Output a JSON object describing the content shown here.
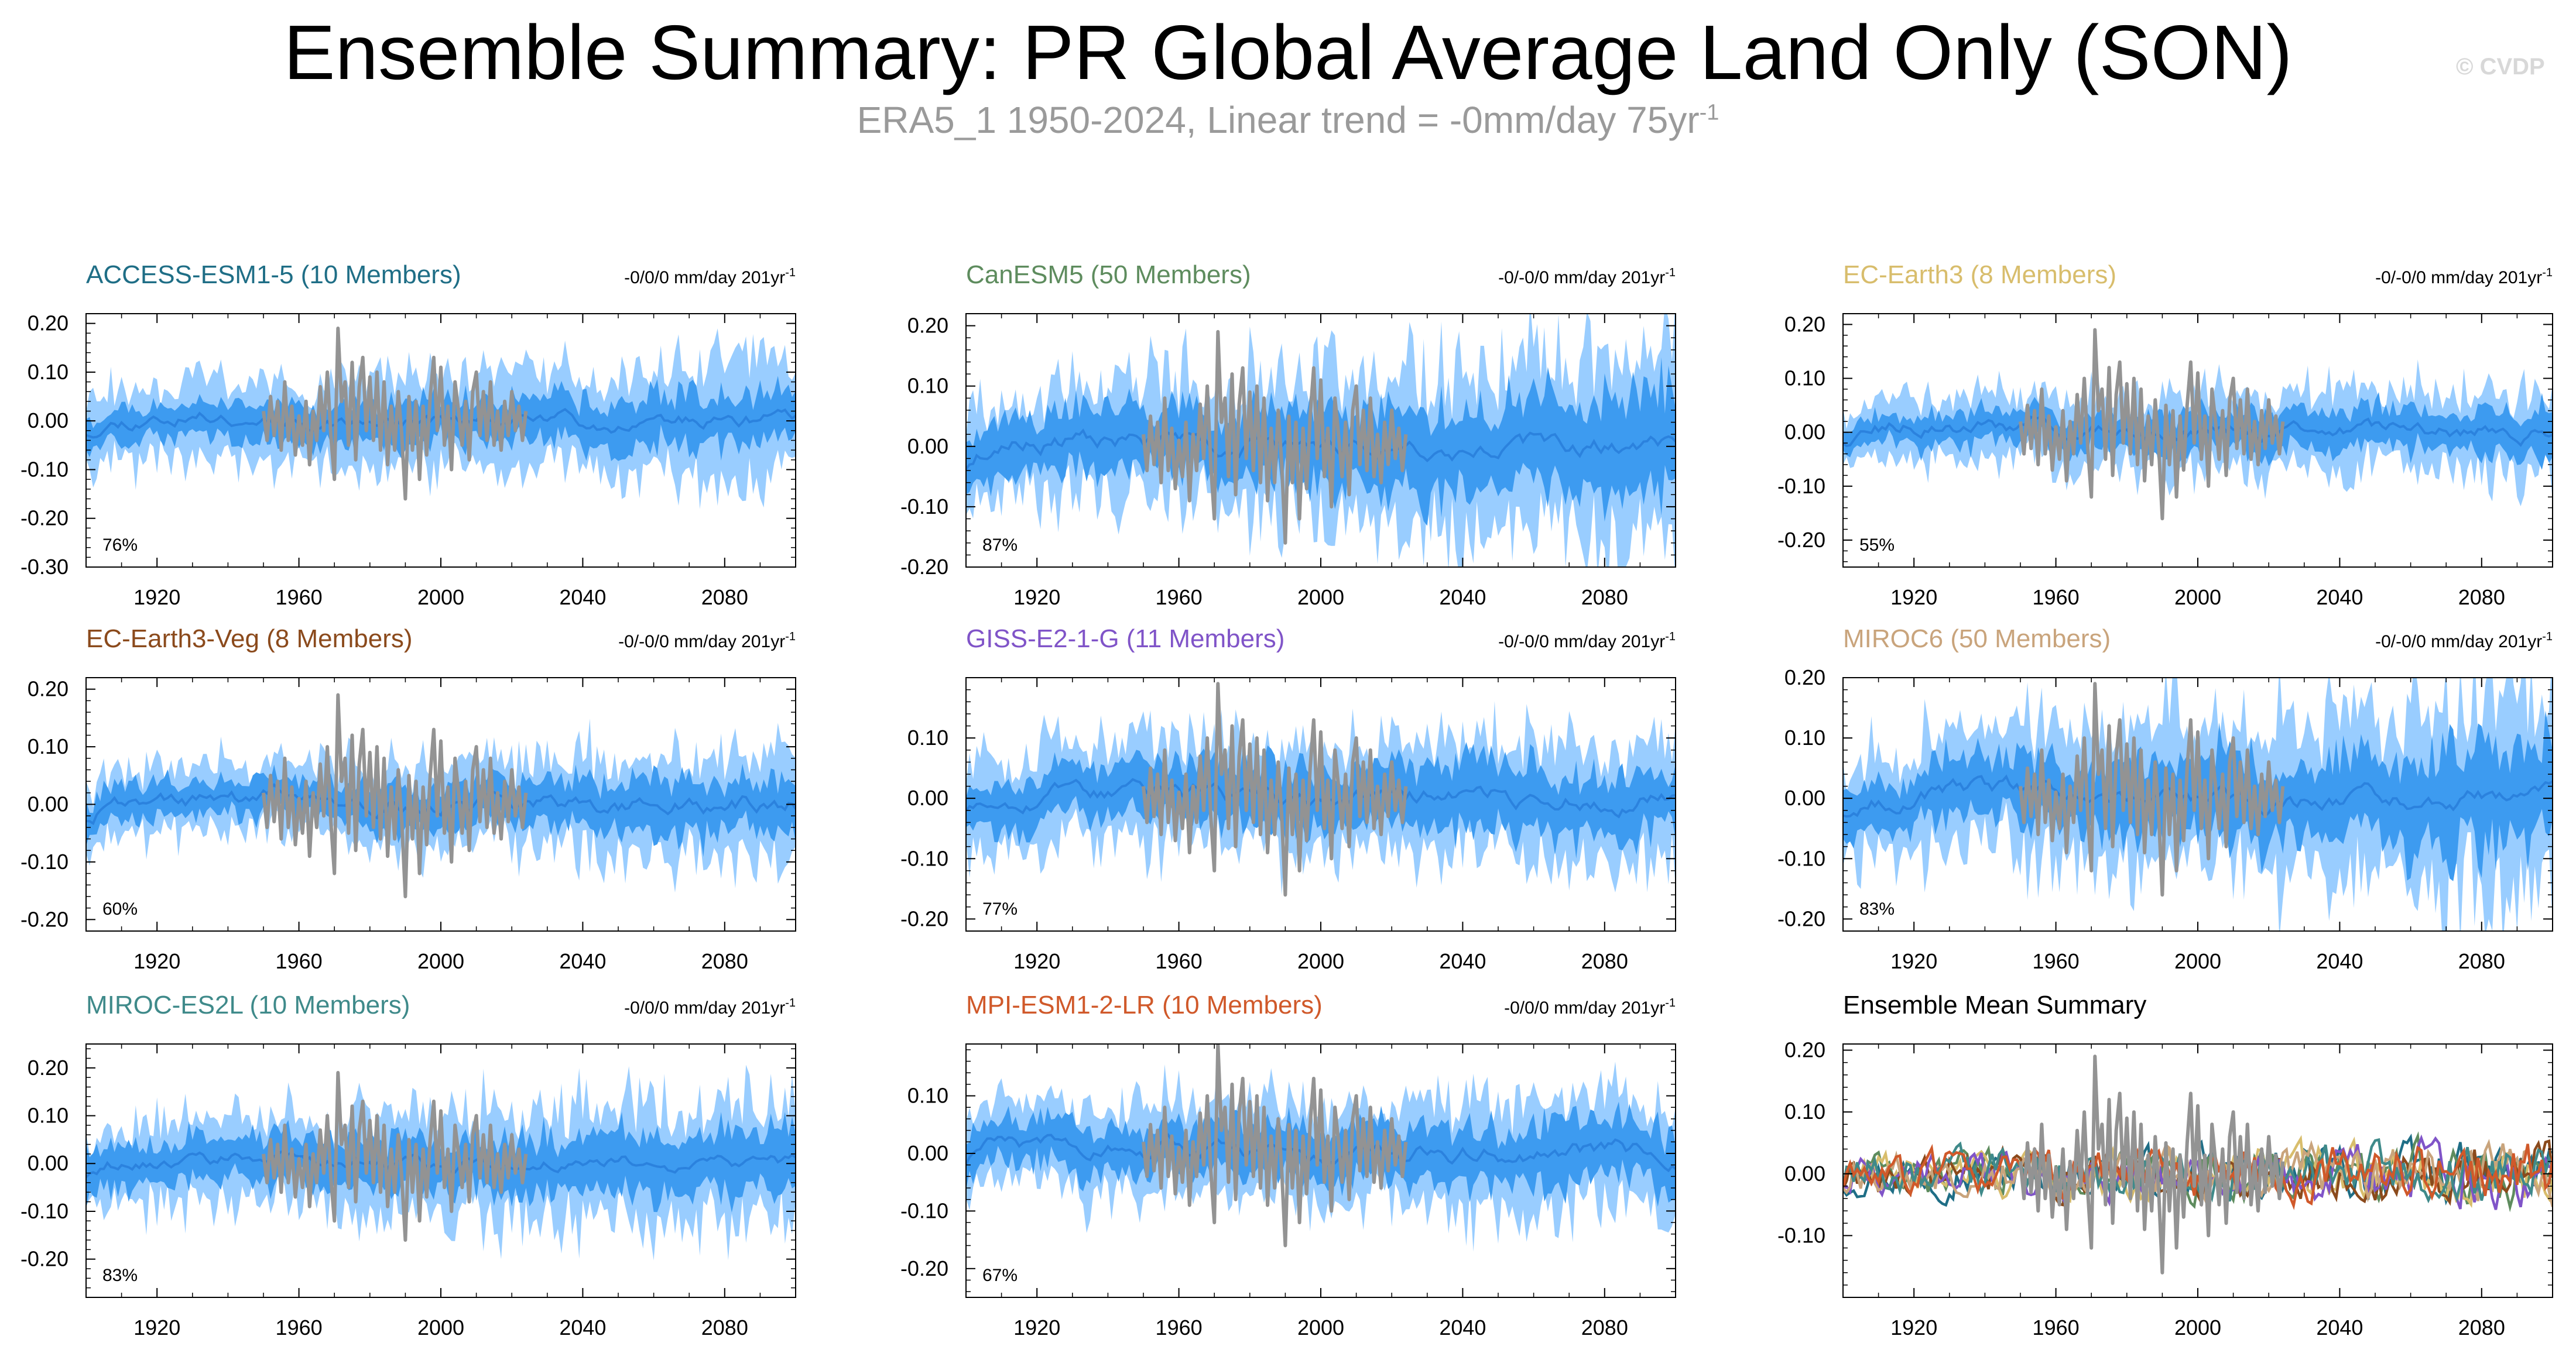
{
  "title": "Ensemble Summary: PR Global Average Land Only (SON)",
  "subtitle": {
    "text": "ERA5_1 1950-2024, Linear trend = -0mm/day 75yr",
    "sup": "-1"
  },
  "credit": "© CVDP",
  "colors": {
    "band_outer": "#99cdff",
    "band_inner": "#3d9bf0",
    "mean_line": "#2b82de",
    "obs_line": "#939393"
  },
  "chart_data": [
    {
      "type": "area",
      "title": "ACCESS-ESM1-5 (10 Members)",
      "title_color": "#1f6e86",
      "trend": "-0/0/0 mm/day 201yr",
      "trend_sup": "-1",
      "pct": "76%",
      "ylim": [
        -0.3,
        0.22
      ],
      "yticks": [
        -0.3,
        -0.2,
        -0.1,
        0.0,
        0.1,
        0.2
      ],
      "yticklabels": [
        "-0.30",
        "-0.20",
        "-0.10",
        "0.00",
        "0.10",
        "0.20"
      ],
      "xlim": [
        1900,
        2100
      ],
      "xticks": [
        1920,
        1960,
        2000,
        2040,
        2080
      ],
      "xticklabels": [
        "1920",
        "1960",
        "2000",
        "2040",
        "2080"
      ],
      "outer_halfwidth": [
        0.07,
        0.11
      ],
      "inner_halfwidth": [
        0.03,
        0.05
      ],
      "mean_start": -0.03,
      "seed": 11
    },
    {
      "type": "area",
      "title": "CanESM5 (50 Members)",
      "title_color": "#5e8c5e",
      "trend": "-0/-0/0 mm/day 201yr",
      "trend_sup": "-1",
      "pct": "87%",
      "ylim": [
        -0.2,
        0.22
      ],
      "yticks": [
        -0.2,
        -0.1,
        0.0,
        0.1,
        0.2
      ],
      "yticklabels": [
        "-0.20",
        "-0.10",
        "0.00",
        "0.10",
        "0.20"
      ],
      "xlim": [
        1900,
        2100
      ],
      "xticks": [
        1920,
        1960,
        2000,
        2040,
        2080
      ],
      "xticklabels": [
        "1920",
        "1960",
        "2000",
        "2040",
        "2080"
      ],
      "outer_halfwidth": [
        0.08,
        0.15
      ],
      "inner_halfwidth": [
        0.04,
        0.08
      ],
      "mean_start": -0.04,
      "seed": 23
    },
    {
      "type": "area",
      "title": "EC-Earth3 (8 Members)",
      "title_color": "#d8bd6c",
      "trend": "-0/-0/0 mm/day 201yr",
      "trend_sup": "-1",
      "pct": "55%",
      "ylim": [
        -0.25,
        0.22
      ],
      "yticks": [
        -0.2,
        -0.1,
        0.0,
        0.1,
        0.2
      ],
      "yticklabels": [
        "-0.20",
        "-0.10",
        "0.00",
        "0.10",
        "0.20"
      ],
      "xlim": [
        1900,
        2100
      ],
      "xticks": [
        1920,
        1960,
        2000,
        2040,
        2080
      ],
      "xticklabels": [
        "1920",
        "1960",
        "2000",
        "2040",
        "2080"
      ],
      "outer_halfwidth": [
        0.05,
        0.08
      ],
      "inner_halfwidth": [
        0.025,
        0.04
      ],
      "mean_start": -0.02,
      "seed": 37
    },
    {
      "type": "area",
      "title": "EC-Earth3-Veg (8 Members)",
      "title_color": "#8b4a1c",
      "trend": "-0/-0/0 mm/day 201yr",
      "trend_sup": "-1",
      "pct": "60%",
      "ylim": [
        -0.22,
        0.22
      ],
      "yticks": [
        -0.2,
        -0.1,
        0.0,
        0.1,
        0.2
      ],
      "yticklabels": [
        "-0.20",
        "-0.10",
        "0.00",
        "0.10",
        "0.20"
      ],
      "xlim": [
        1900,
        2100
      ],
      "xticks": [
        1920,
        1960,
        2000,
        2040,
        2080
      ],
      "xticklabels": [
        "1920",
        "1960",
        "2000",
        "2040",
        "2080"
      ],
      "outer_halfwidth": [
        0.05,
        0.09
      ],
      "inner_halfwidth": [
        0.025,
        0.045
      ],
      "mean_start": -0.03,
      "seed": 41
    },
    {
      "type": "area",
      "title": "GISS-E2-1-G (11 Members)",
      "title_color": "#8054c8",
      "trend": "-0/-0/0 mm/day 201yr",
      "trend_sup": "-1",
      "pct": "77%",
      "ylim": [
        -0.22,
        0.2
      ],
      "yticks": [
        -0.2,
        -0.1,
        0.0,
        0.1
      ],
      "yticklabels": [
        "-0.20",
        "-0.10",
        "0.00",
        "0.10"
      ],
      "xlim": [
        1900,
        2100
      ],
      "xticks": [
        1920,
        1960,
        2000,
        2040,
        2080
      ],
      "xticklabels": [
        "1920",
        "1960",
        "2000",
        "2040",
        "2080"
      ],
      "outer_halfwidth": [
        0.08,
        0.1
      ],
      "inner_halfwidth": [
        0.04,
        0.05
      ],
      "mean_start": -0.02,
      "seed": 53
    },
    {
      "type": "area",
      "title": "MIROC6 (50 Members)",
      "title_color": "#c9a47c",
      "trend": "-0/-0/0 mm/day 201yr",
      "trend_sup": "-1",
      "pct": "83%",
      "ylim": [
        -0.22,
        0.2
      ],
      "yticks": [
        -0.2,
        -0.1,
        0.0,
        0.1,
        0.2
      ],
      "yticklabels": [
        "-0.20",
        "-0.10",
        "0.00",
        "0.10",
        "0.20"
      ],
      "xlim": [
        1900,
        2100
      ],
      "xticks": [
        1920,
        1960,
        2000,
        2040,
        2080
      ],
      "xticklabels": [
        "1920",
        "1960",
        "2000",
        "2040",
        "2080"
      ],
      "outer_halfwidth": [
        0.08,
        0.16
      ],
      "inner_halfwidth": [
        0.04,
        0.08
      ],
      "mean_start": -0.03,
      "seed": 67
    },
    {
      "type": "area",
      "title": "MIROC-ES2L (10 Members)",
      "title_color": "#3f8a8a",
      "trend": "-0/0/0 mm/day 201yr",
      "trend_sup": "-1",
      "pct": "83%",
      "ylim": [
        -0.28,
        0.25
      ],
      "yticks": [
        -0.2,
        -0.1,
        0.0,
        0.1,
        0.2
      ],
      "yticklabels": [
        "-0.20",
        "-0.10",
        "0.00",
        "0.10",
        "0.20"
      ],
      "xlim": [
        1900,
        2100
      ],
      "xticks": [
        1920,
        1960,
        2000,
        2040,
        2080
      ],
      "xticklabels": [
        "1920",
        "1960",
        "2000",
        "2040",
        "2080"
      ],
      "outer_halfwidth": [
        0.08,
        0.13
      ],
      "inner_halfwidth": [
        0.04,
        0.06
      ],
      "mean_start": -0.03,
      "seed": 79
    },
    {
      "type": "area",
      "title": "MPI-ESM1-2-LR (10 Members)",
      "title_color": "#d0592a",
      "trend": "-0/0/0 mm/day 201yr",
      "trend_sup": "-1",
      "pct": "67%",
      "ylim": [
        -0.25,
        0.19
      ],
      "yticks": [
        -0.2,
        -0.1,
        0.0,
        0.1
      ],
      "yticklabels": [
        "-0.20",
        "-0.10",
        "0.00",
        "0.10"
      ],
      "xlim": [
        1900,
        2100
      ],
      "xticks": [
        1920,
        1960,
        2000,
        2040,
        2080
      ],
      "xticklabels": [
        "1920",
        "1960",
        "2000",
        "2040",
        "2080"
      ],
      "outer_halfwidth": [
        0.07,
        0.1
      ],
      "inner_halfwidth": [
        0.035,
        0.05
      ],
      "mean_start": -0.02,
      "seed": 89
    },
    {
      "type": "line",
      "title": "Ensemble Mean Summary",
      "title_color": "#000000",
      "trend": "",
      "trend_sup": "",
      "pct": "",
      "ylim": [
        -0.2,
        0.21
      ],
      "yticks": [
        -0.1,
        0.0,
        0.1,
        0.2
      ],
      "yticklabels": [
        "-0.10",
        "0.00",
        "0.10",
        "0.20"
      ],
      "xlim": [
        1900,
        2100
      ],
      "xticks": [
        1920,
        1960,
        2000,
        2040,
        2080
      ],
      "xticklabels": [
        "1920",
        "1960",
        "2000",
        "2040",
        "2080"
      ],
      "series": [
        {
          "name": "ACCESS-ESM1-5",
          "color": "#1f6e86"
        },
        {
          "name": "CanESM5",
          "color": "#5e8c5e"
        },
        {
          "name": "EC-Earth3",
          "color": "#d8bd6c"
        },
        {
          "name": "EC-Earth3-Veg",
          "color": "#8b4a1c"
        },
        {
          "name": "GISS-E2-1-G",
          "color": "#8054c8"
        },
        {
          "name": "MIROC6",
          "color": "#c9a47c"
        },
        {
          "name": "MIROC-ES2L",
          "color": "#3f8a8a"
        },
        {
          "name": "MPI-ESM1-2-LR",
          "color": "#d0592a"
        }
      ],
      "seed": 97
    }
  ],
  "observations": {
    "name": "ERA5_1",
    "years": [
      1950,
      1951,
      1952,
      1953,
      1954,
      1955,
      1956,
      1957,
      1958,
      1959,
      1960,
      1961,
      1962,
      1963,
      1964,
      1965,
      1966,
      1967,
      1968,
      1969,
      1970,
      1971,
      1972,
      1973,
      1974,
      1975,
      1976,
      1977,
      1978,
      1979,
      1980,
      1981,
      1982,
      1983,
      1984,
      1985,
      1986,
      1987,
      1988,
      1989,
      1990,
      1991,
      1992,
      1993,
      1994,
      1995,
      1996,
      1997,
      1998,
      1999,
      2000,
      2001,
      2002,
      2003,
      2004,
      2005,
      2006,
      2007,
      2008,
      2009,
      2010,
      2011,
      2012,
      2013,
      2014,
      2015,
      2016,
      2017,
      2018,
      2019,
      2020,
      2021,
      2022,
      2023,
      2024
    ],
    "values": [
      0.02,
      -0.04,
      0.05,
      -0.03,
      0.04,
      -0.06,
      0.08,
      -0.04,
      0.03,
      -0.07,
      0.01,
      -0.05,
      0.04,
      -0.09,
      0.02,
      -0.04,
      0.07,
      -0.02,
      0.1,
      -0.03,
      -0.12,
      0.19,
      0.04,
      0.08,
      -0.05,
      0.12,
      -0.08,
      0.07,
      0.13,
      -0.02,
      0.09,
      -0.04,
      0.1,
      -0.06,
      0.08,
      -0.09,
      0.03,
      -0.06,
      0.06,
      -0.03,
      -0.16,
      0.05,
      -0.06,
      0.04,
      -0.12,
      0.03,
      -0.07,
      0.05,
      0.13,
      -0.02,
      0.11,
      -0.05,
      0.03,
      -0.1,
      0.08,
      0.02,
      -0.05,
      0.04,
      -0.08,
      0.06,
      0.1,
      -0.03,
      0.06,
      -0.04,
      0.08,
      -0.05,
      0.02,
      -0.06,
      0.04,
      -0.03,
      0.06,
      -0.02,
      0.03,
      -0.04,
      0.02
    ]
  }
}
